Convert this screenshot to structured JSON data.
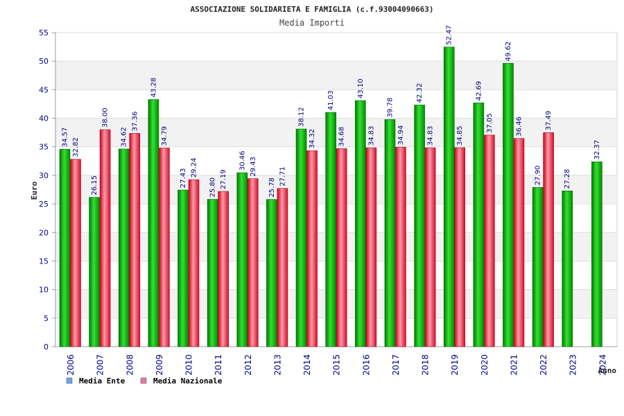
{
  "chart_data": {
    "type": "bar",
    "title": "ASSOCIAZIONE SOLIDARIETA E FAMIGLIA (c.f.93004090663)",
    "subtitle": "Media Importi",
    "xlabel": "Anno",
    "ylabel": "Euro",
    "ylim": [
      0,
      55
    ],
    "yticks": [
      0,
      5,
      10,
      15,
      20,
      25,
      30,
      35,
      40,
      45,
      50,
      55
    ],
    "grid": true,
    "legend_position": "bottom-left",
    "categories": [
      "2006",
      "2007",
      "2008",
      "2009",
      "2010",
      "2011",
      "2012",
      "2013",
      "2014",
      "2015",
      "2016",
      "2017",
      "2018",
      "2019",
      "2020",
      "2021",
      "2022",
      "2023",
      "2024"
    ],
    "series": [
      {
        "name": "Media Ente",
        "color": "#00a000",
        "legend_color": "#6aa6e8",
        "values": [
          34.57,
          26.15,
          34.62,
          43.28,
          27.43,
          25.8,
          30.46,
          25.78,
          38.12,
          41.03,
          43.1,
          39.78,
          42.32,
          52.47,
          42.69,
          49.62,
          27.9,
          27.28,
          32.37
        ],
        "labels": [
          "34.57",
          "26.15",
          "34.62",
          "43.28",
          "27.43",
          "25.80",
          "30.46",
          "25.78",
          "38.12",
          "41.03",
          "43.10",
          "39.78",
          "42.32",
          "52.47",
          "42.69",
          "49.62",
          "27.90",
          "27.28",
          "32.37"
        ]
      },
      {
        "name": "Media Nazionale",
        "color": "#e02030",
        "legend_color": "#e07aa8",
        "values": [
          32.82,
          38.0,
          37.36,
          34.79,
          29.24,
          27.19,
          29.43,
          27.71,
          34.32,
          34.68,
          34.83,
          34.94,
          34.83,
          34.85,
          37.05,
          36.46,
          37.49,
          null,
          null
        ],
        "labels": [
          "32.82",
          "38.00",
          "37.36",
          "34.79",
          "29.24",
          "27.19",
          "29.43",
          "27.71",
          "34.32",
          "34.68",
          "34.83",
          "34.94",
          "34.83",
          "34.85",
          "37.05",
          "36.46",
          "37.49",
          "",
          ""
        ]
      }
    ]
  }
}
